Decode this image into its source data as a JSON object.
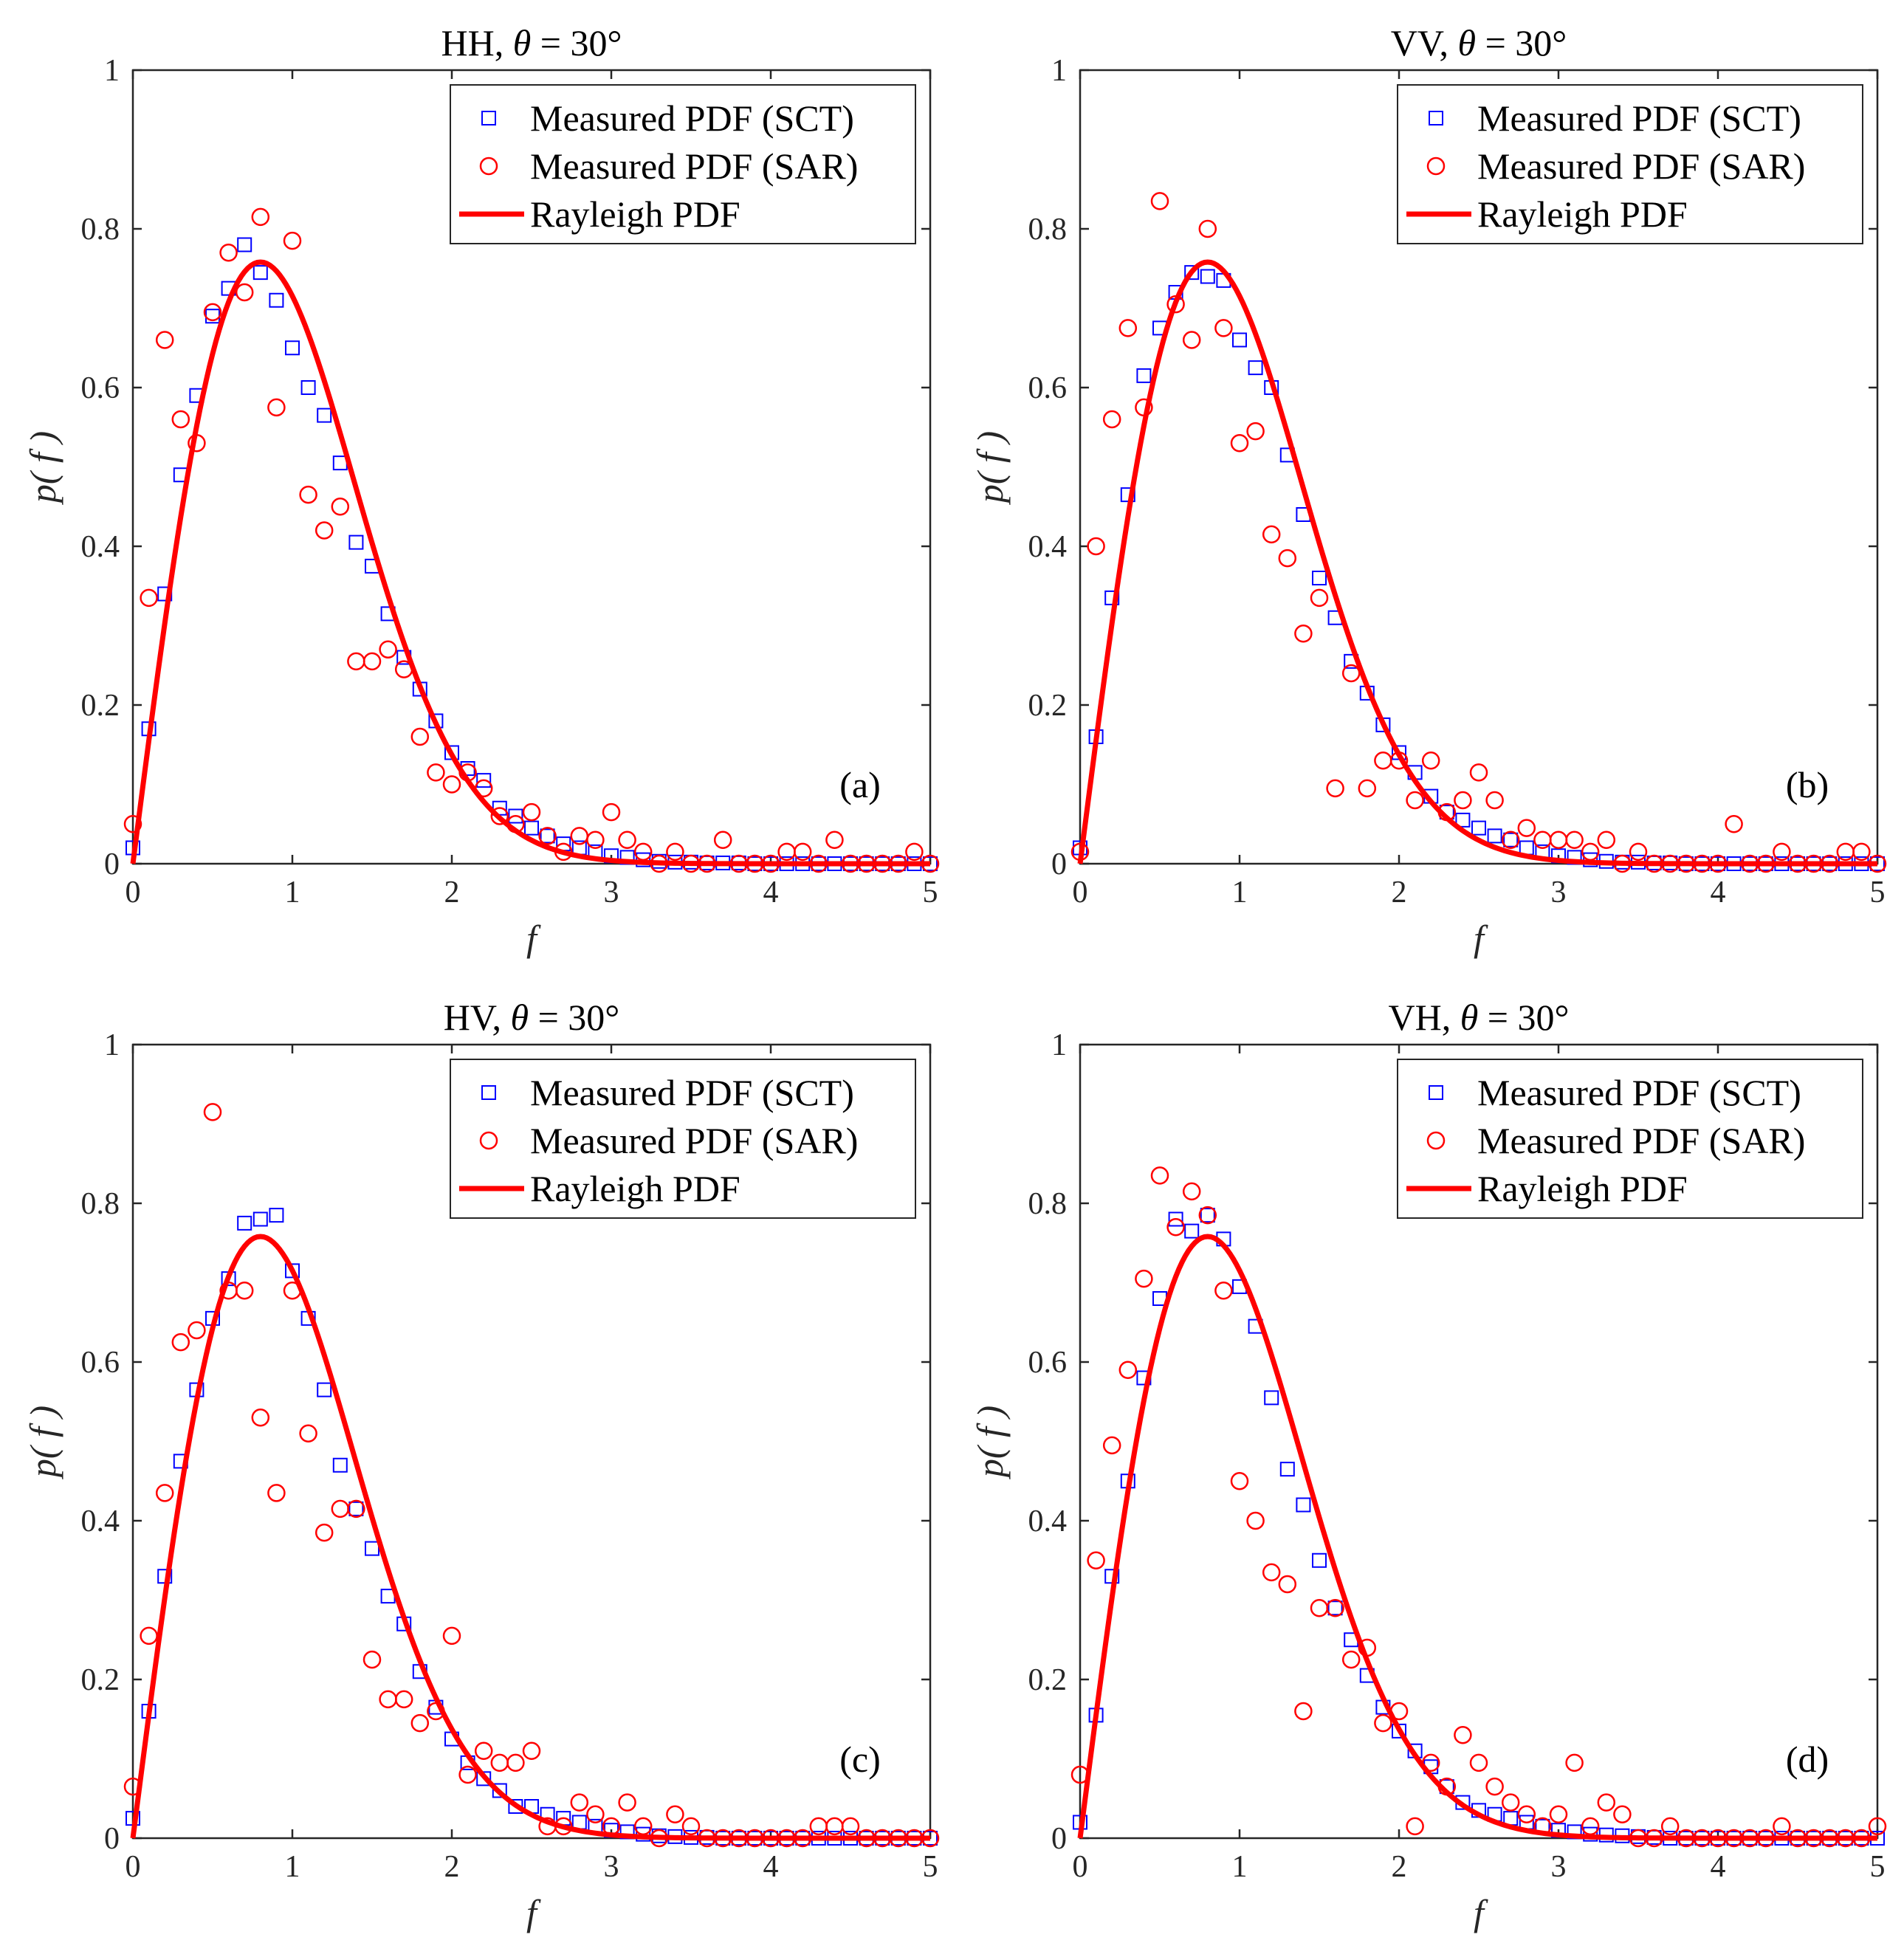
{
  "chart_data": [
    {
      "type": "scatter",
      "panel": "a",
      "title_prefix": "HH, ",
      "title_symbol": "θ",
      "title_suffix": " = 30°",
      "xlabel": "f",
      "ylabel": "p( f )",
      "xlim": [
        0,
        5
      ],
      "ylim": [
        0,
        1
      ],
      "xticks": [
        "0",
        "1",
        "2",
        "3",
        "4",
        "5"
      ],
      "yticks": [
        "0",
        "0.2",
        "0.4",
        "0.6",
        "0.8",
        "1"
      ],
      "legend_position": "top-right",
      "tag": "(a)",
      "series": [
        {
          "name": "Measured PDF (SCT)",
          "marker": "square",
          "color": "#0000ff",
          "x": [
            0,
            0.1,
            0.2,
            0.3,
            0.4,
            0.5,
            0.6,
            0.7,
            0.8,
            0.9,
            1.0,
            1.1,
            1.2,
            1.3,
            1.4,
            1.5,
            1.6,
            1.7,
            1.8,
            1.9,
            2.0,
            2.1,
            2.2,
            2.3,
            2.4,
            2.5,
            2.6,
            2.7,
            2.8,
            2.9,
            3.0,
            3.1,
            3.2,
            3.3,
            3.4,
            3.5,
            3.6,
            3.7,
            3.8,
            3.9,
            4.0,
            4.1,
            4.2,
            4.3,
            4.4,
            4.5,
            4.6,
            4.7,
            4.8,
            4.9,
            5.0
          ],
          "y": [
            0.02,
            0.17,
            0.34,
            0.49,
            0.59,
            0.69,
            0.725,
            0.78,
            0.745,
            0.71,
            0.65,
            0.6,
            0.565,
            0.505,
            0.405,
            0.375,
            0.315,
            0.26,
            0.22,
            0.18,
            0.14,
            0.12,
            0.105,
            0.07,
            0.06,
            0.045,
            0.035,
            0.025,
            0.02,
            0.015,
            0.01,
            0.008,
            0.005,
            0.003,
            0.002,
            0.002,
            0.001,
            0.001,
            0.001,
            0,
            0,
            0,
            0,
            0,
            0,
            0,
            0,
            0,
            0,
            0,
            0
          ]
        },
        {
          "name": "Measured PDF (SAR)",
          "marker": "circle",
          "color": "#ff0000",
          "x": [
            0,
            0.1,
            0.2,
            0.3,
            0.4,
            0.5,
            0.6,
            0.7,
            0.8,
            0.9,
            1.0,
            1.1,
            1.2,
            1.3,
            1.4,
            1.5,
            1.6,
            1.7,
            1.8,
            1.9,
            2.0,
            2.1,
            2.2,
            2.3,
            2.4,
            2.5,
            2.6,
            2.7,
            2.8,
            2.9,
            3.0,
            3.1,
            3.2,
            3.3,
            3.4,
            3.5,
            3.6,
            3.7,
            3.8,
            3.9,
            4.0,
            4.1,
            4.2,
            4.3,
            4.4,
            4.5,
            4.6,
            4.7,
            4.8,
            4.9,
            5.0
          ],
          "y": [
            0.05,
            0.335,
            0.66,
            0.56,
            0.53,
            0.695,
            0.77,
            0.72,
            0.815,
            0.575,
            0.785,
            0.465,
            0.42,
            0.45,
            0.255,
            0.255,
            0.27,
            0.245,
            0.16,
            0.115,
            0.1,
            0.115,
            0.095,
            0.06,
            0.05,
            0.065,
            0.035,
            0.015,
            0.035,
            0.03,
            0.065,
            0.03,
            0.015,
            0,
            0.015,
            0,
            0,
            0.03,
            0,
            0,
            0,
            0.015,
            0.015,
            0,
            0.03,
            0,
            0,
            0,
            0,
            0.015,
            0
          ]
        },
        {
          "name": "Rayleigh PDF",
          "marker": "line",
          "color": "#ff0000",
          "sigma": 0.8
        }
      ]
    },
    {
      "type": "scatter",
      "panel": "b",
      "title_prefix": "VV, ",
      "title_symbol": "θ",
      "title_suffix": " = 30°",
      "xlabel": "f",
      "ylabel": "p( f )",
      "xlim": [
        0,
        5
      ],
      "ylim": [
        0,
        1
      ],
      "xticks": [
        "0",
        "1",
        "2",
        "3",
        "4",
        "5"
      ],
      "yticks": [
        "0",
        "0.2",
        "0.4",
        "0.6",
        "0.8",
        "1"
      ],
      "legend_position": "top-right",
      "tag": "(b)",
      "series": [
        {
          "name": "Measured PDF (SCT)",
          "marker": "square",
          "color": "#0000ff",
          "x": [
            0,
            0.1,
            0.2,
            0.3,
            0.4,
            0.5,
            0.6,
            0.7,
            0.8,
            0.9,
            1.0,
            1.1,
            1.2,
            1.3,
            1.4,
            1.5,
            1.6,
            1.7,
            1.8,
            1.9,
            2.0,
            2.1,
            2.2,
            2.3,
            2.4,
            2.5,
            2.6,
            2.7,
            2.8,
            2.9,
            3.0,
            3.1,
            3.2,
            3.3,
            3.4,
            3.5,
            3.6,
            3.7,
            3.8,
            3.9,
            4.0,
            4.1,
            4.2,
            4.3,
            4.4,
            4.5,
            4.6,
            4.7,
            4.8,
            4.9,
            5.0
          ],
          "y": [
            0.02,
            0.16,
            0.335,
            0.465,
            0.615,
            0.675,
            0.72,
            0.745,
            0.74,
            0.735,
            0.66,
            0.625,
            0.6,
            0.515,
            0.44,
            0.36,
            0.31,
            0.255,
            0.215,
            0.175,
            0.14,
            0.115,
            0.085,
            0.065,
            0.055,
            0.045,
            0.035,
            0.03,
            0.02,
            0.015,
            0.01,
            0.008,
            0.005,
            0.003,
            0.002,
            0.002,
            0.001,
            0.001,
            0,
            0,
            0,
            0,
            0,
            0,
            0,
            0,
            0,
            0,
            0,
            0,
            0
          ]
        },
        {
          "name": "Measured PDF (SAR)",
          "marker": "circle",
          "color": "#ff0000",
          "x": [
            0,
            0.1,
            0.2,
            0.3,
            0.4,
            0.5,
            0.6,
            0.7,
            0.8,
            0.9,
            1.0,
            1.1,
            1.2,
            1.3,
            1.4,
            1.5,
            1.6,
            1.7,
            1.8,
            1.9,
            2.0,
            2.1,
            2.2,
            2.3,
            2.4,
            2.5,
            2.6,
            2.7,
            2.8,
            2.9,
            3.0,
            3.1,
            3.2,
            3.3,
            3.4,
            3.5,
            3.6,
            3.7,
            3.8,
            3.9,
            4.0,
            4.1,
            4.2,
            4.3,
            4.4,
            4.5,
            4.6,
            4.7,
            4.8,
            4.9,
            5.0
          ],
          "y": [
            0.015,
            0.4,
            0.56,
            0.675,
            0.575,
            0.835,
            0.705,
            0.66,
            0.8,
            0.675,
            0.53,
            0.545,
            0.415,
            0.385,
            0.29,
            0.335,
            0.095,
            0.24,
            0.095,
            0.13,
            0.13,
            0.08,
            0.13,
            0.065,
            0.08,
            0.115,
            0.08,
            0.03,
            0.045,
            0.03,
            0.03,
            0.03,
            0.015,
            0.03,
            0,
            0.015,
            0,
            0,
            0,
            0,
            0,
            0.05,
            0,
            0,
            0.015,
            0,
            0,
            0,
            0.015,
            0.015,
            0
          ]
        },
        {
          "name": "Rayleigh PDF",
          "marker": "line",
          "color": "#ff0000",
          "sigma": 0.8
        }
      ]
    },
    {
      "type": "scatter",
      "panel": "c",
      "title_prefix": "HV, ",
      "title_symbol": "θ",
      "title_suffix": " = 30°",
      "xlabel": "f",
      "ylabel": "p( f )",
      "xlim": [
        0,
        5
      ],
      "ylim": [
        0,
        1
      ],
      "xticks": [
        "0",
        "1",
        "2",
        "3",
        "4",
        "5"
      ],
      "yticks": [
        "0",
        "0.2",
        "0.4",
        "0.6",
        "0.8",
        "1"
      ],
      "legend_position": "top-right",
      "tag": "(c)",
      "series": [
        {
          "name": "Measured PDF (SCT)",
          "marker": "square",
          "color": "#0000ff",
          "x": [
            0,
            0.1,
            0.2,
            0.3,
            0.4,
            0.5,
            0.6,
            0.7,
            0.8,
            0.9,
            1.0,
            1.1,
            1.2,
            1.3,
            1.4,
            1.5,
            1.6,
            1.7,
            1.8,
            1.9,
            2.0,
            2.1,
            2.2,
            2.3,
            2.4,
            2.5,
            2.6,
            2.7,
            2.8,
            2.9,
            3.0,
            3.1,
            3.2,
            3.3,
            3.4,
            3.5,
            3.6,
            3.7,
            3.8,
            3.9,
            4.0,
            4.1,
            4.2,
            4.3,
            4.4,
            4.5,
            4.6,
            4.7,
            4.8,
            4.9,
            5.0
          ],
          "y": [
            0.025,
            0.16,
            0.33,
            0.475,
            0.565,
            0.655,
            0.705,
            0.775,
            0.78,
            0.785,
            0.715,
            0.655,
            0.565,
            0.47,
            0.415,
            0.365,
            0.305,
            0.27,
            0.21,
            0.165,
            0.125,
            0.095,
            0.075,
            0.06,
            0.04,
            0.04,
            0.03,
            0.025,
            0.02,
            0.015,
            0.01,
            0.008,
            0.005,
            0.003,
            0.002,
            0.001,
            0.001,
            0,
            0,
            0,
            0,
            0,
            0,
            0,
            0,
            0,
            0,
            0,
            0,
            0,
            0
          ]
        },
        {
          "name": "Measured PDF (SAR)",
          "marker": "circle",
          "color": "#ff0000",
          "x": [
            0,
            0.1,
            0.2,
            0.3,
            0.4,
            0.5,
            0.6,
            0.7,
            0.8,
            0.9,
            1.0,
            1.1,
            1.2,
            1.3,
            1.4,
            1.5,
            1.6,
            1.7,
            1.8,
            1.9,
            2.0,
            2.1,
            2.2,
            2.3,
            2.4,
            2.5,
            2.6,
            2.7,
            2.8,
            2.9,
            3.0,
            3.1,
            3.2,
            3.3,
            3.4,
            3.5,
            3.6,
            3.7,
            3.8,
            3.9,
            4.0,
            4.1,
            4.2,
            4.3,
            4.4,
            4.5,
            4.6,
            4.7,
            4.8,
            4.9,
            5.0
          ],
          "y": [
            0.065,
            0.255,
            0.435,
            0.625,
            0.64,
            0.915,
            0.69,
            0.69,
            0.53,
            0.435,
            0.69,
            0.51,
            0.385,
            0.415,
            0.415,
            0.225,
            0.175,
            0.175,
            0.145,
            0.16,
            0.255,
            0.08,
            0.11,
            0.095,
            0.095,
            0.11,
            0.015,
            0.015,
            0.045,
            0.03,
            0.015,
            0.045,
            0.015,
            0,
            0.03,
            0.015,
            0,
            0,
            0,
            0,
            0,
            0,
            0,
            0.015,
            0.015,
            0.015,
            0,
            0,
            0,
            0,
            0
          ]
        },
        {
          "name": "Rayleigh PDF",
          "marker": "line",
          "color": "#ff0000",
          "sigma": 0.8
        }
      ]
    },
    {
      "type": "scatter",
      "panel": "d",
      "title_prefix": "VH, ",
      "title_symbol": "θ",
      "title_suffix": " = 30°",
      "xlabel": "f",
      "ylabel": "p( f )",
      "xlim": [
        0,
        5
      ],
      "ylim": [
        0,
        1
      ],
      "xticks": [
        "0",
        "1",
        "2",
        "3",
        "4",
        "5"
      ],
      "yticks": [
        "0",
        "0.2",
        "0.4",
        "0.6",
        "0.8",
        "1"
      ],
      "legend_position": "top-right",
      "tag": "(d)",
      "series": [
        {
          "name": "Measured PDF (SCT)",
          "marker": "square",
          "color": "#0000ff",
          "x": [
            0,
            0.1,
            0.2,
            0.3,
            0.4,
            0.5,
            0.6,
            0.7,
            0.8,
            0.9,
            1.0,
            1.1,
            1.2,
            1.3,
            1.4,
            1.5,
            1.6,
            1.7,
            1.8,
            1.9,
            2.0,
            2.1,
            2.2,
            2.3,
            2.4,
            2.5,
            2.6,
            2.7,
            2.8,
            2.9,
            3.0,
            3.1,
            3.2,
            3.3,
            3.4,
            3.5,
            3.6,
            3.7,
            3.8,
            3.9,
            4.0,
            4.1,
            4.2,
            4.3,
            4.4,
            4.5,
            4.6,
            4.7,
            4.8,
            4.9,
            5.0
          ],
          "y": [
            0.02,
            0.155,
            0.33,
            0.45,
            0.58,
            0.68,
            0.78,
            0.765,
            0.785,
            0.755,
            0.695,
            0.645,
            0.555,
            0.465,
            0.42,
            0.35,
            0.29,
            0.25,
            0.205,
            0.165,
            0.135,
            0.11,
            0.09,
            0.065,
            0.045,
            0.035,
            0.03,
            0.025,
            0.02,
            0.015,
            0.01,
            0.008,
            0.005,
            0.004,
            0.003,
            0.002,
            0.001,
            0,
            0,
            0,
            0,
            0,
            0,
            0,
            0,
            0,
            0,
            0,
            0,
            0,
            0
          ]
        },
        {
          "name": "Measured PDF (SAR)",
          "marker": "circle",
          "color": "#ff0000",
          "x": [
            0,
            0.1,
            0.2,
            0.3,
            0.4,
            0.5,
            0.6,
            0.7,
            0.8,
            0.9,
            1.0,
            1.1,
            1.2,
            1.3,
            1.4,
            1.5,
            1.6,
            1.7,
            1.8,
            1.9,
            2.0,
            2.1,
            2.2,
            2.3,
            2.4,
            2.5,
            2.6,
            2.7,
            2.8,
            2.9,
            3.0,
            3.1,
            3.2,
            3.3,
            3.4,
            3.5,
            3.6,
            3.7,
            3.8,
            3.9,
            4.0,
            4.1,
            4.2,
            4.3,
            4.4,
            4.5,
            4.6,
            4.7,
            4.8,
            4.9,
            5.0
          ],
          "y": [
            0.08,
            0.35,
            0.495,
            0.59,
            0.705,
            0.835,
            0.77,
            0.815,
            0.785,
            0.69,
            0.45,
            0.4,
            0.335,
            0.32,
            0.16,
            0.29,
            0.29,
            0.225,
            0.24,
            0.145,
            0.16,
            0.015,
            0.095,
            0.065,
            0.13,
            0.095,
            0.065,
            0.045,
            0.03,
            0.015,
            0.03,
            0.095,
            0.015,
            0.045,
            0.03,
            0,
            0,
            0.015,
            0,
            0,
            0,
            0,
            0,
            0,
            0.015,
            0,
            0,
            0,
            0,
            0,
            0.015
          ]
        },
        {
          "name": "Rayleigh PDF",
          "marker": "line",
          "color": "#ff0000",
          "sigma": 0.8
        }
      ]
    }
  ]
}
